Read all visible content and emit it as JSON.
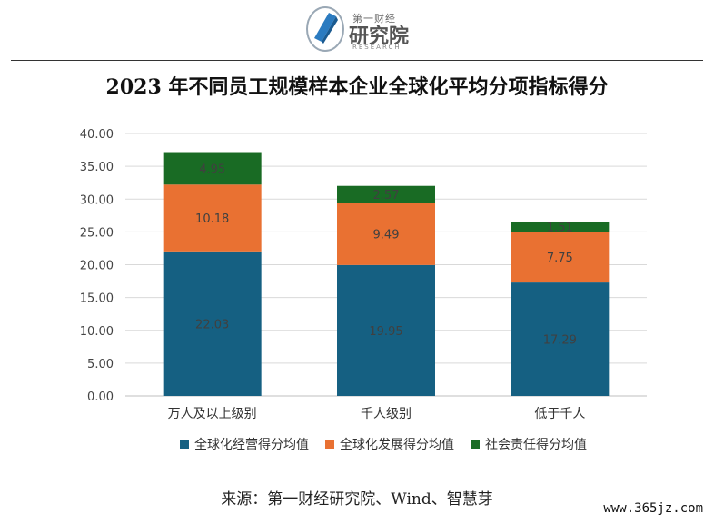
{
  "logo": {
    "top_text": "第一财经",
    "main_text": "研究院",
    "sub_text": "RESEARCH",
    "accent_color": "#2b7bc0"
  },
  "chart_data": {
    "type": "bar",
    "stacked": true,
    "title": "2023 年不同员工规模样本企业全球化平均分项指标得分",
    "categories": [
      "万人及以上级别",
      "千人级别",
      "低于千人"
    ],
    "series": [
      {
        "name": "全球化经营得分均值",
        "color": "#156082",
        "values": [
          22.03,
          19.95,
          17.29
        ],
        "labels": [
          "22.03",
          "19.95",
          "17.29"
        ]
      },
      {
        "name": "全球化发展得分均值",
        "color": "#e97132",
        "values": [
          10.18,
          9.49,
          7.75
        ],
        "labels": [
          "10.18",
          "9.49",
          "7.75"
        ]
      },
      {
        "name": "社会责任得分均值",
        "color": "#196b24",
        "values": [
          4.95,
          2.57,
          1.51
        ],
        "labels": [
          "4.95",
          "2.57",
          "1.51"
        ]
      }
    ],
    "ylim": [
      0,
      40
    ],
    "yticks": [
      "0.00",
      "5.00",
      "10.00",
      "15.00",
      "20.00",
      "25.00",
      "30.00",
      "35.00",
      "40.00"
    ],
    "grid": true,
    "legend": "bottom"
  },
  "source": "来源：第一财经研究院、Wind、智慧芽",
  "watermark": "www.365jz.com"
}
